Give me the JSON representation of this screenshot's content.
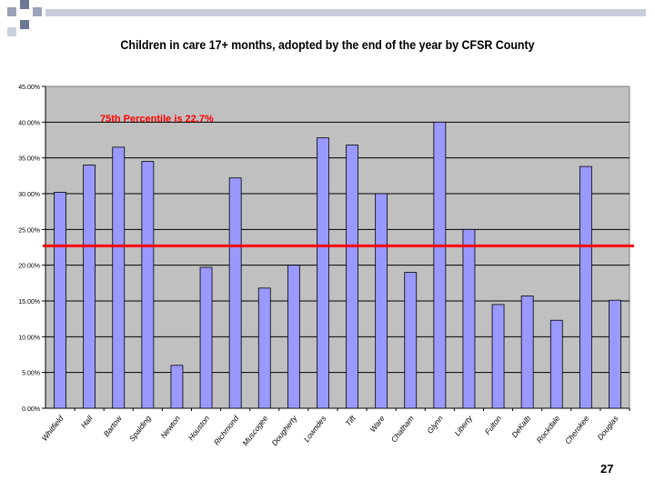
{
  "slide": {
    "page_number": "27"
  },
  "chart_data": {
    "type": "bar",
    "title": "Children in care 17+ months, adopted by the end of the year by CFSR County",
    "xlabel": "",
    "ylabel": "",
    "categories": [
      "Whitfield",
      "Hall",
      "Bartow",
      "Spalding",
      "Newton",
      "Houston",
      "Richmond",
      "Muscogee",
      "Dougherty",
      "Lowndes",
      "Tift",
      "Ware",
      "Chatham",
      "Glynn",
      "Liberty",
      "Fulton",
      "DeKalb",
      "Rockdale",
      "Cherokee",
      "Douglas"
    ],
    "series": [
      {
        "values": [
          30.2,
          34.0,
          36.5,
          34.5,
          6.0,
          19.7,
          32.2,
          16.8,
          20.0,
          37.8,
          36.8,
          30.0,
          19.0,
          40.0,
          25.0,
          14.5,
          15.7,
          12.3,
          33.8,
          15.1
        ]
      }
    ],
    "ylim": [
      0,
      45
    ],
    "yticks": [
      "0.00%",
      "5.00%",
      "10.00%",
      "15.00%",
      "20.00%",
      "25.00%",
      "30.00%",
      "35.00%",
      "40.00%",
      "45.00%"
    ],
    "grid": true,
    "plot_background": "#c0c0c0",
    "bar_color": "#9999ff",
    "reference_line": {
      "value": 22.7,
      "color": "#ff0000",
      "label": "75th Percentile is 22.7%"
    }
  }
}
